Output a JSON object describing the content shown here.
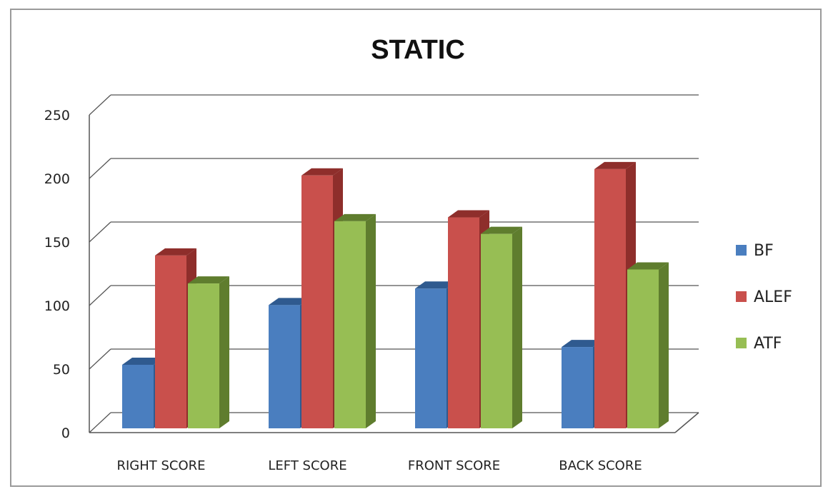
{
  "chart_data": {
    "type": "bar",
    "title": "STATIC",
    "xlabel": "",
    "ylabel": "",
    "ylim": [
      0,
      250
    ],
    "yticks": [
      0,
      50,
      100,
      150,
      200,
      250
    ],
    "categories": [
      "RIGHT SCORE",
      "LEFT SCORE",
      "FRONT SCORE",
      "BACK SCORE"
    ],
    "series": [
      {
        "name": "BF",
        "values": [
          50,
          97,
          110,
          64
        ],
        "color": "#4a7ebf",
        "side": "#2f5a8f",
        "top": "#2f5a8f"
      },
      {
        "name": "ALEF",
        "values": [
          136,
          199,
          166,
          204
        ],
        "color": "#c9504c",
        "side": "#8e2e2b",
        "top": "#8e2e2b"
      },
      {
        "name": "ATF",
        "values": [
          114,
          163,
          153,
          125
        ],
        "color": "#97be54",
        "side": "#5f7d2e",
        "top": "#5f7d2e"
      }
    ],
    "grid": true,
    "legend": "right",
    "style": "3d-clustered-column"
  }
}
